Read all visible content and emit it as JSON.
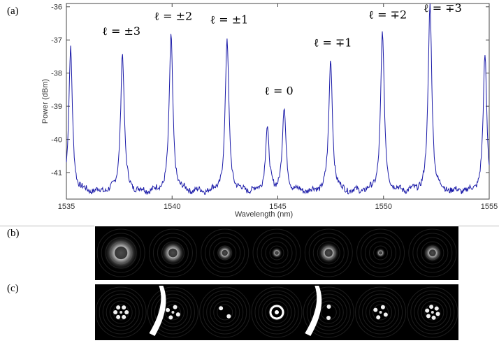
{
  "panels": {
    "a": "(a)",
    "b": "(b)",
    "c": "(c)"
  },
  "chart_data": {
    "type": "line",
    "title": "",
    "xlabel": "Wavelength (nm)",
    "ylabel": "Power (dBm)",
    "xlim": [
      1535,
      1555
    ],
    "ylim": [
      -41.8,
      -35.9
    ],
    "xticks": [
      "1535",
      "1540",
      "1545",
      "1550",
      "1555"
    ],
    "yticks": [
      "-36",
      "-37",
      "-38",
      "-39",
      "-40",
      "-41"
    ],
    "grid": false,
    "series": [
      {
        "color": "#1a1aa8",
        "baseline": -41.6,
        "peaks": [
          {
            "x": 1535.2,
            "y": -37.3
          },
          {
            "x": 1537.65,
            "y": -37.4
          },
          {
            "x": 1539.95,
            "y": -36.9
          },
          {
            "x": 1542.6,
            "y": -37.0
          },
          {
            "x": 1544.5,
            "y": -39.7
          },
          {
            "x": 1545.3,
            "y": -39.1
          },
          {
            "x": 1547.5,
            "y": -37.6
          },
          {
            "x": 1549.95,
            "y": -36.8
          },
          {
            "x": 1552.2,
            "y": -35.9
          },
          {
            "x": 1554.8,
            "y": -37.5
          }
        ]
      }
    ],
    "annotations": [
      {
        "text": "ℓ = ±3",
        "x": 1537.6,
        "y": -36.85
      },
      {
        "text": "ℓ = ±2",
        "x": 1540.05,
        "y": -36.4
      },
      {
        "text": "ℓ = ±1",
        "x": 1542.7,
        "y": -36.5
      },
      {
        "text": "ℓ = 0",
        "x": 1545.05,
        "y": -38.65
      },
      {
        "text": "ℓ = ∓1",
        "x": 1547.6,
        "y": -37.2
      },
      {
        "text": "ℓ = ∓2",
        "x": 1550.2,
        "y": -36.35
      },
      {
        "text": "ℓ = ∓3",
        "x": 1552.8,
        "y": -36.15
      }
    ]
  },
  "beam_strip_b": {
    "count": 7
  },
  "beam_strip_c": {
    "count": 7
  }
}
